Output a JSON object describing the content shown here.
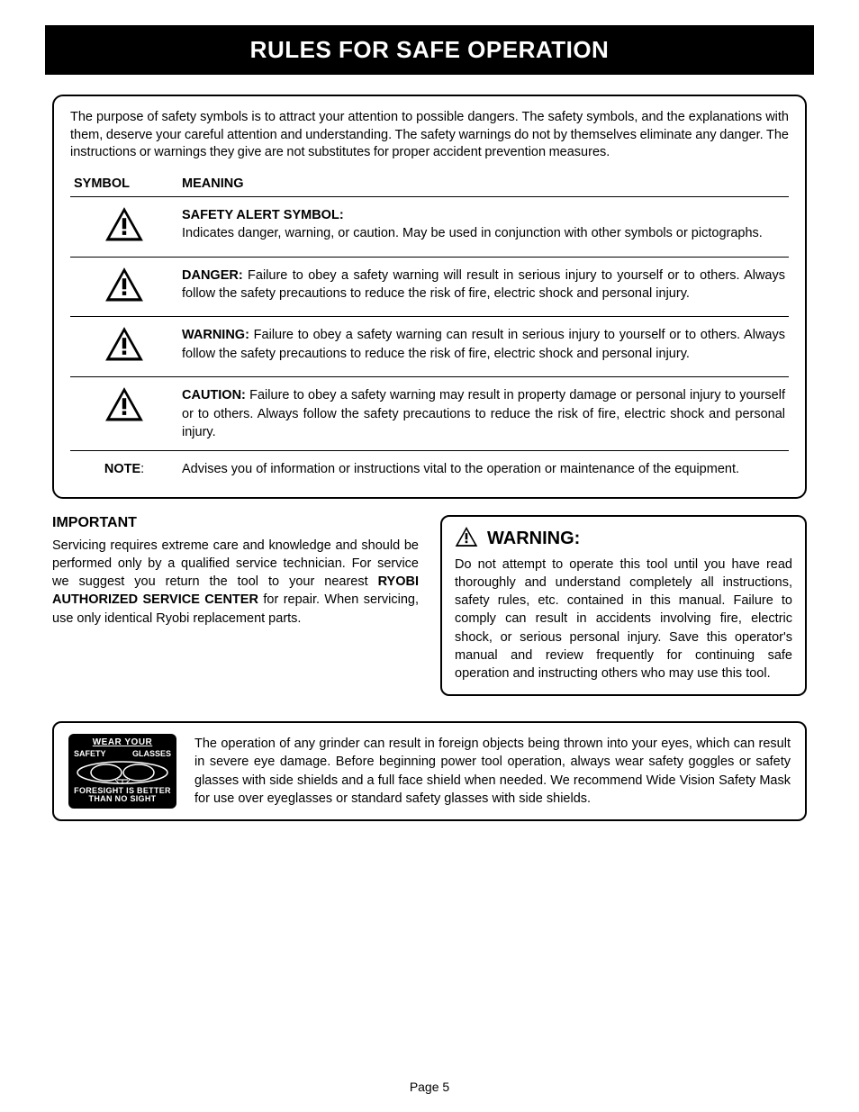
{
  "title": "RULES FOR SAFE OPERATION",
  "intro": "The purpose of safety symbols is to attract your attention to possible dangers. The safety symbols, and the explanations with them, deserve your careful attention and understanding. The safety warnings do not by themselves eliminate any danger. The instructions or warnings they give are not substitutes for proper accident prevention measures.",
  "columns": {
    "symbol": "SYMBOL",
    "meaning": "MEANING"
  },
  "rows": [
    {
      "icon": true,
      "label": "SAFETY ALERT SYMBOL:",
      "labelLine": true,
      "text": "Indicates danger, warning, or caution. May be used in conjunction with other symbols or pictographs."
    },
    {
      "icon": true,
      "label": "DANGER:",
      "text": " Failure to obey a safety warning will result in serious injury to yourself or to others. Always follow the safety precautions to reduce the risk of fire, electric shock and personal injury."
    },
    {
      "icon": true,
      "label": "WARNING:",
      "text": " Failure to obey a safety warning can result in serious injury to yourself or to others. Always follow the safety precautions to reduce the risk of fire, electric shock and personal injury."
    },
    {
      "icon": true,
      "label": "CAUTION:",
      "text": " Failure to obey a safety warning may result in property damage or personal injury to yourself or to others. Always follow the safety precautions to reduce the risk of fire, electric shock and personal injury."
    },
    {
      "icon": false,
      "note": "NOTE",
      "text": "Advises you of information or instructions vital to the operation or maintenance of the equipment."
    }
  ],
  "important": {
    "heading": "IMPORTANT",
    "text1": "Servicing  requires extreme care and knowledge and should be performed only by a qualified service technician. For service we suggest you return the tool to your nearest ",
    "bold": "RYOBI AUTHORIZED SERVICE CENTER",
    "text2": " for repair. When servicing, use only identical Ryobi replacement parts."
  },
  "warning": {
    "heading": "WARNING:",
    "text": "Do not attempt to operate this tool until you have read thoroughly and understand completely all instructions, safety rules, etc. contained in this manual. Failure to comply can result in accidents involving fire, electric shock, or serious personal injury. Save this operator's manual and review frequently for continuing safe operation and instructing others who may use this tool."
  },
  "goggles": {
    "wearYour": "WEAR YOUR",
    "safety": "SAFETY",
    "glasses": "GLASSES",
    "line1": "FORESIGHT IS BETTER",
    "line2": "THAN NO SIGHT",
    "text": "The operation of any grinder can result in foreign objects being thrown into your eyes, which can result in severe eye damage. Before beginning power tool operation, always wear safety goggles or safety glasses with side shields and a full face shield when needed. We recommend Wide Vision Safety Mask for use over eyeglasses or standard safety glasses with side shields."
  },
  "pageNum": "Page 5"
}
